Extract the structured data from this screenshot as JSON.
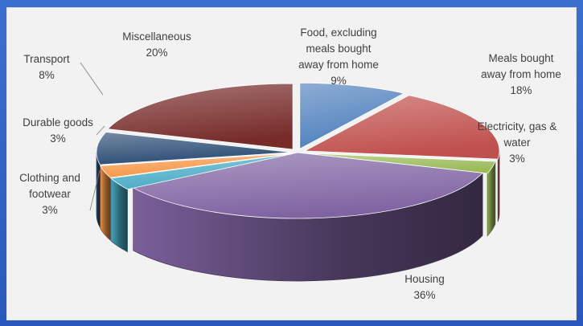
{
  "chart_data": {
    "type": "pie",
    "title": "",
    "slices": [
      {
        "label": "Food, excluding meals bought away from home",
        "label_lines": [
          "Food, excluding",
          "meals bought",
          "away from home"
        ],
        "value": 9,
        "value_label": "9%",
        "color": "#4f81bd"
      },
      {
        "label": "Meals bought away from home",
        "label_lines": [
          "Meals bought",
          "away from home"
        ],
        "value": 18,
        "value_label": "18%",
        "color": "#c0504d"
      },
      {
        "label": "Electricity, gas & water",
        "label_lines": [
          "Electricity, gas &",
          "water"
        ],
        "value": 3,
        "value_label": "3%",
        "color": "#9bbb59"
      },
      {
        "label": "Housing",
        "label_lines": [
          "Housing"
        ],
        "value": 36,
        "value_label": "36%",
        "color": "#8064a2"
      },
      {
        "label": "Clothing and footwear",
        "label_lines": [
          "Clothing and",
          "footwear"
        ],
        "value": 3,
        "value_label": "3%",
        "color": "#4bacc6"
      },
      {
        "label": "Durable goods",
        "label_lines": [
          "Durable goods"
        ],
        "value": 3,
        "value_label": "3%",
        "color": "#f79646"
      },
      {
        "label": "Transport",
        "label_lines": [
          "Transport"
        ],
        "value": 8,
        "value_label": "8%",
        "color": "#2c4d75"
      },
      {
        "label": "Miscellaneous",
        "label_lines": [
          "Miscellaneous"
        ],
        "value": 20,
        "value_label": "20%",
        "color": "#772c2a"
      }
    ],
    "style": "3d-exploded"
  }
}
